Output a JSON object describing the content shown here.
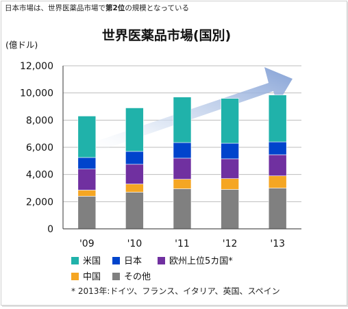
{
  "header": {
    "note_prefix": "日本市場は、世界医薬品市場で",
    "note_bold": "第2位",
    "note_suffix": "の規模となっている"
  },
  "chart_data": {
    "type": "bar",
    "stacked": true,
    "title": "世界医薬品市場(国別)",
    "ylabel": "(億ドル)",
    "xlabel": "",
    "categories": [
      "'09",
      "'10",
      "'11",
      "'12",
      "'13"
    ],
    "ylim": [
      0,
      12000
    ],
    "yticks": [
      0,
      2000,
      4000,
      6000,
      8000,
      10000,
      12000
    ],
    "ytick_labels": [
      "0",
      "2,000",
      "4,000",
      "6,000",
      "8,000",
      "10,000",
      "12,000"
    ],
    "grid": true,
    "legend_position": "bottom",
    "series": [
      {
        "name": "その他",
        "color": "#808080",
        "values": [
          2400,
          2700,
          2950,
          2900,
          3000
        ]
      },
      {
        "name": "中国",
        "color": "#f5a623",
        "values": [
          450,
          600,
          700,
          800,
          900
        ]
      },
      {
        "name": "欧州上位5カ国*",
        "color": "#7030a0",
        "values": [
          1550,
          1450,
          1550,
          1450,
          1550
        ]
      },
      {
        "name": "日本",
        "color": "#0044cc",
        "values": [
          850,
          950,
          1150,
          1150,
          950
        ]
      },
      {
        "name": "米国",
        "color": "#20b2aa",
        "values": [
          3050,
          3200,
          3350,
          3300,
          3450
        ]
      }
    ],
    "legend_order": [
      "米国",
      "日本",
      "欧州上位5カ国*",
      "中国",
      "その他"
    ],
    "footnote": "* 2013年:ドイツ、フランス、イタリア、英国、スペイン"
  }
}
